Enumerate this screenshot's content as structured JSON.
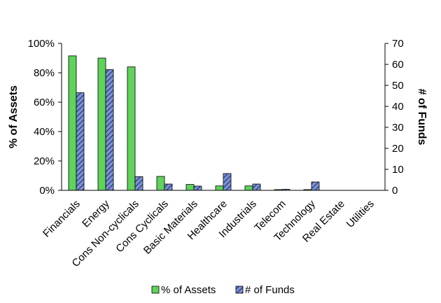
{
  "chart_data": {
    "type": "bar",
    "title": "",
    "categories": [
      "Financials",
      "Energy",
      "Cons Non-cyclicals",
      "Cons Cyclicals",
      "Basic Materials",
      "Healthcare",
      "Industrials",
      "Telecom",
      "Technology",
      "Real Estate",
      "Utilities"
    ],
    "series": [
      {
        "name": "% of Assets",
        "axis": "left",
        "color": "#5fd35a",
        "values": [
          91.5,
          90,
          84,
          9.5,
          4,
          3,
          3,
          0.5,
          0.5,
          0,
          0
        ]
      },
      {
        "name": "# of Funds",
        "axis": "right",
        "color": "#7a8fd6",
        "values": [
          46.5,
          57.5,
          6.5,
          3,
          2,
          8,
          3,
          0.5,
          4,
          0,
          0
        ]
      }
    ],
    "ylabel_left": "% of Assets",
    "ylabel_right": "# of Funds",
    "ylim_left": [
      0,
      100
    ],
    "ylim_right": [
      0,
      70
    ],
    "yticks_left": [
      "0%",
      "20%",
      "40%",
      "60%",
      "80%",
      "100%"
    ],
    "yticks_right": [
      "0",
      "10",
      "20",
      "30",
      "40",
      "50",
      "60",
      "70"
    ],
    "grid": false,
    "legend": {
      "position": "bottom",
      "entries": [
        "% of Assets",
        "# of Funds"
      ]
    }
  }
}
